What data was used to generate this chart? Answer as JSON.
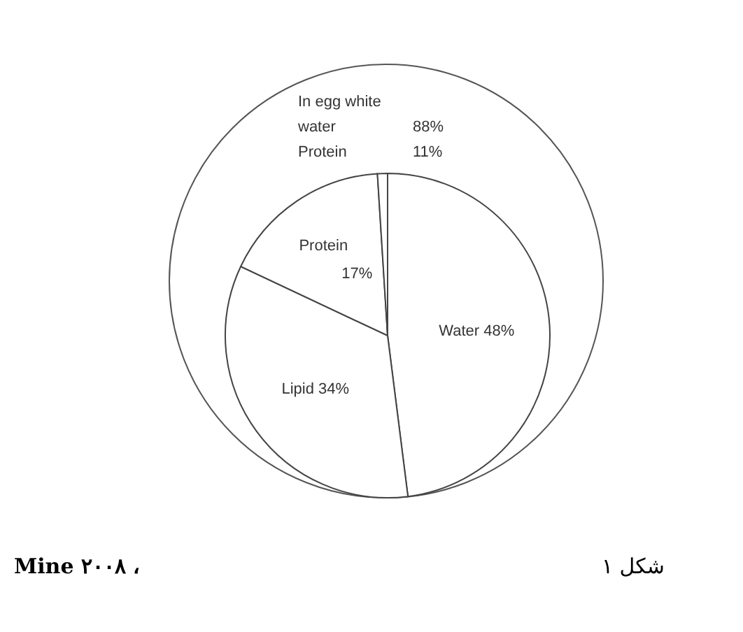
{
  "chart_data": {
    "type": "pie",
    "categories": [
      "Water",
      "Lipid",
      "Protein",
      null
    ],
    "values": [
      48,
      34,
      17,
      1
    ],
    "value_labels": [
      "48%",
      "34%",
      "17%",
      null
    ],
    "colors": [
      "#ffffff",
      "#ffffff",
      "#ffffff",
      "#ffffff"
    ],
    "annotations": [
      "In egg white",
      "water",
      "88%",
      "Protein",
      "11%",
      "Mine ۲۰۰۸ ،",
      "شکل ۱"
    ]
  }
}
